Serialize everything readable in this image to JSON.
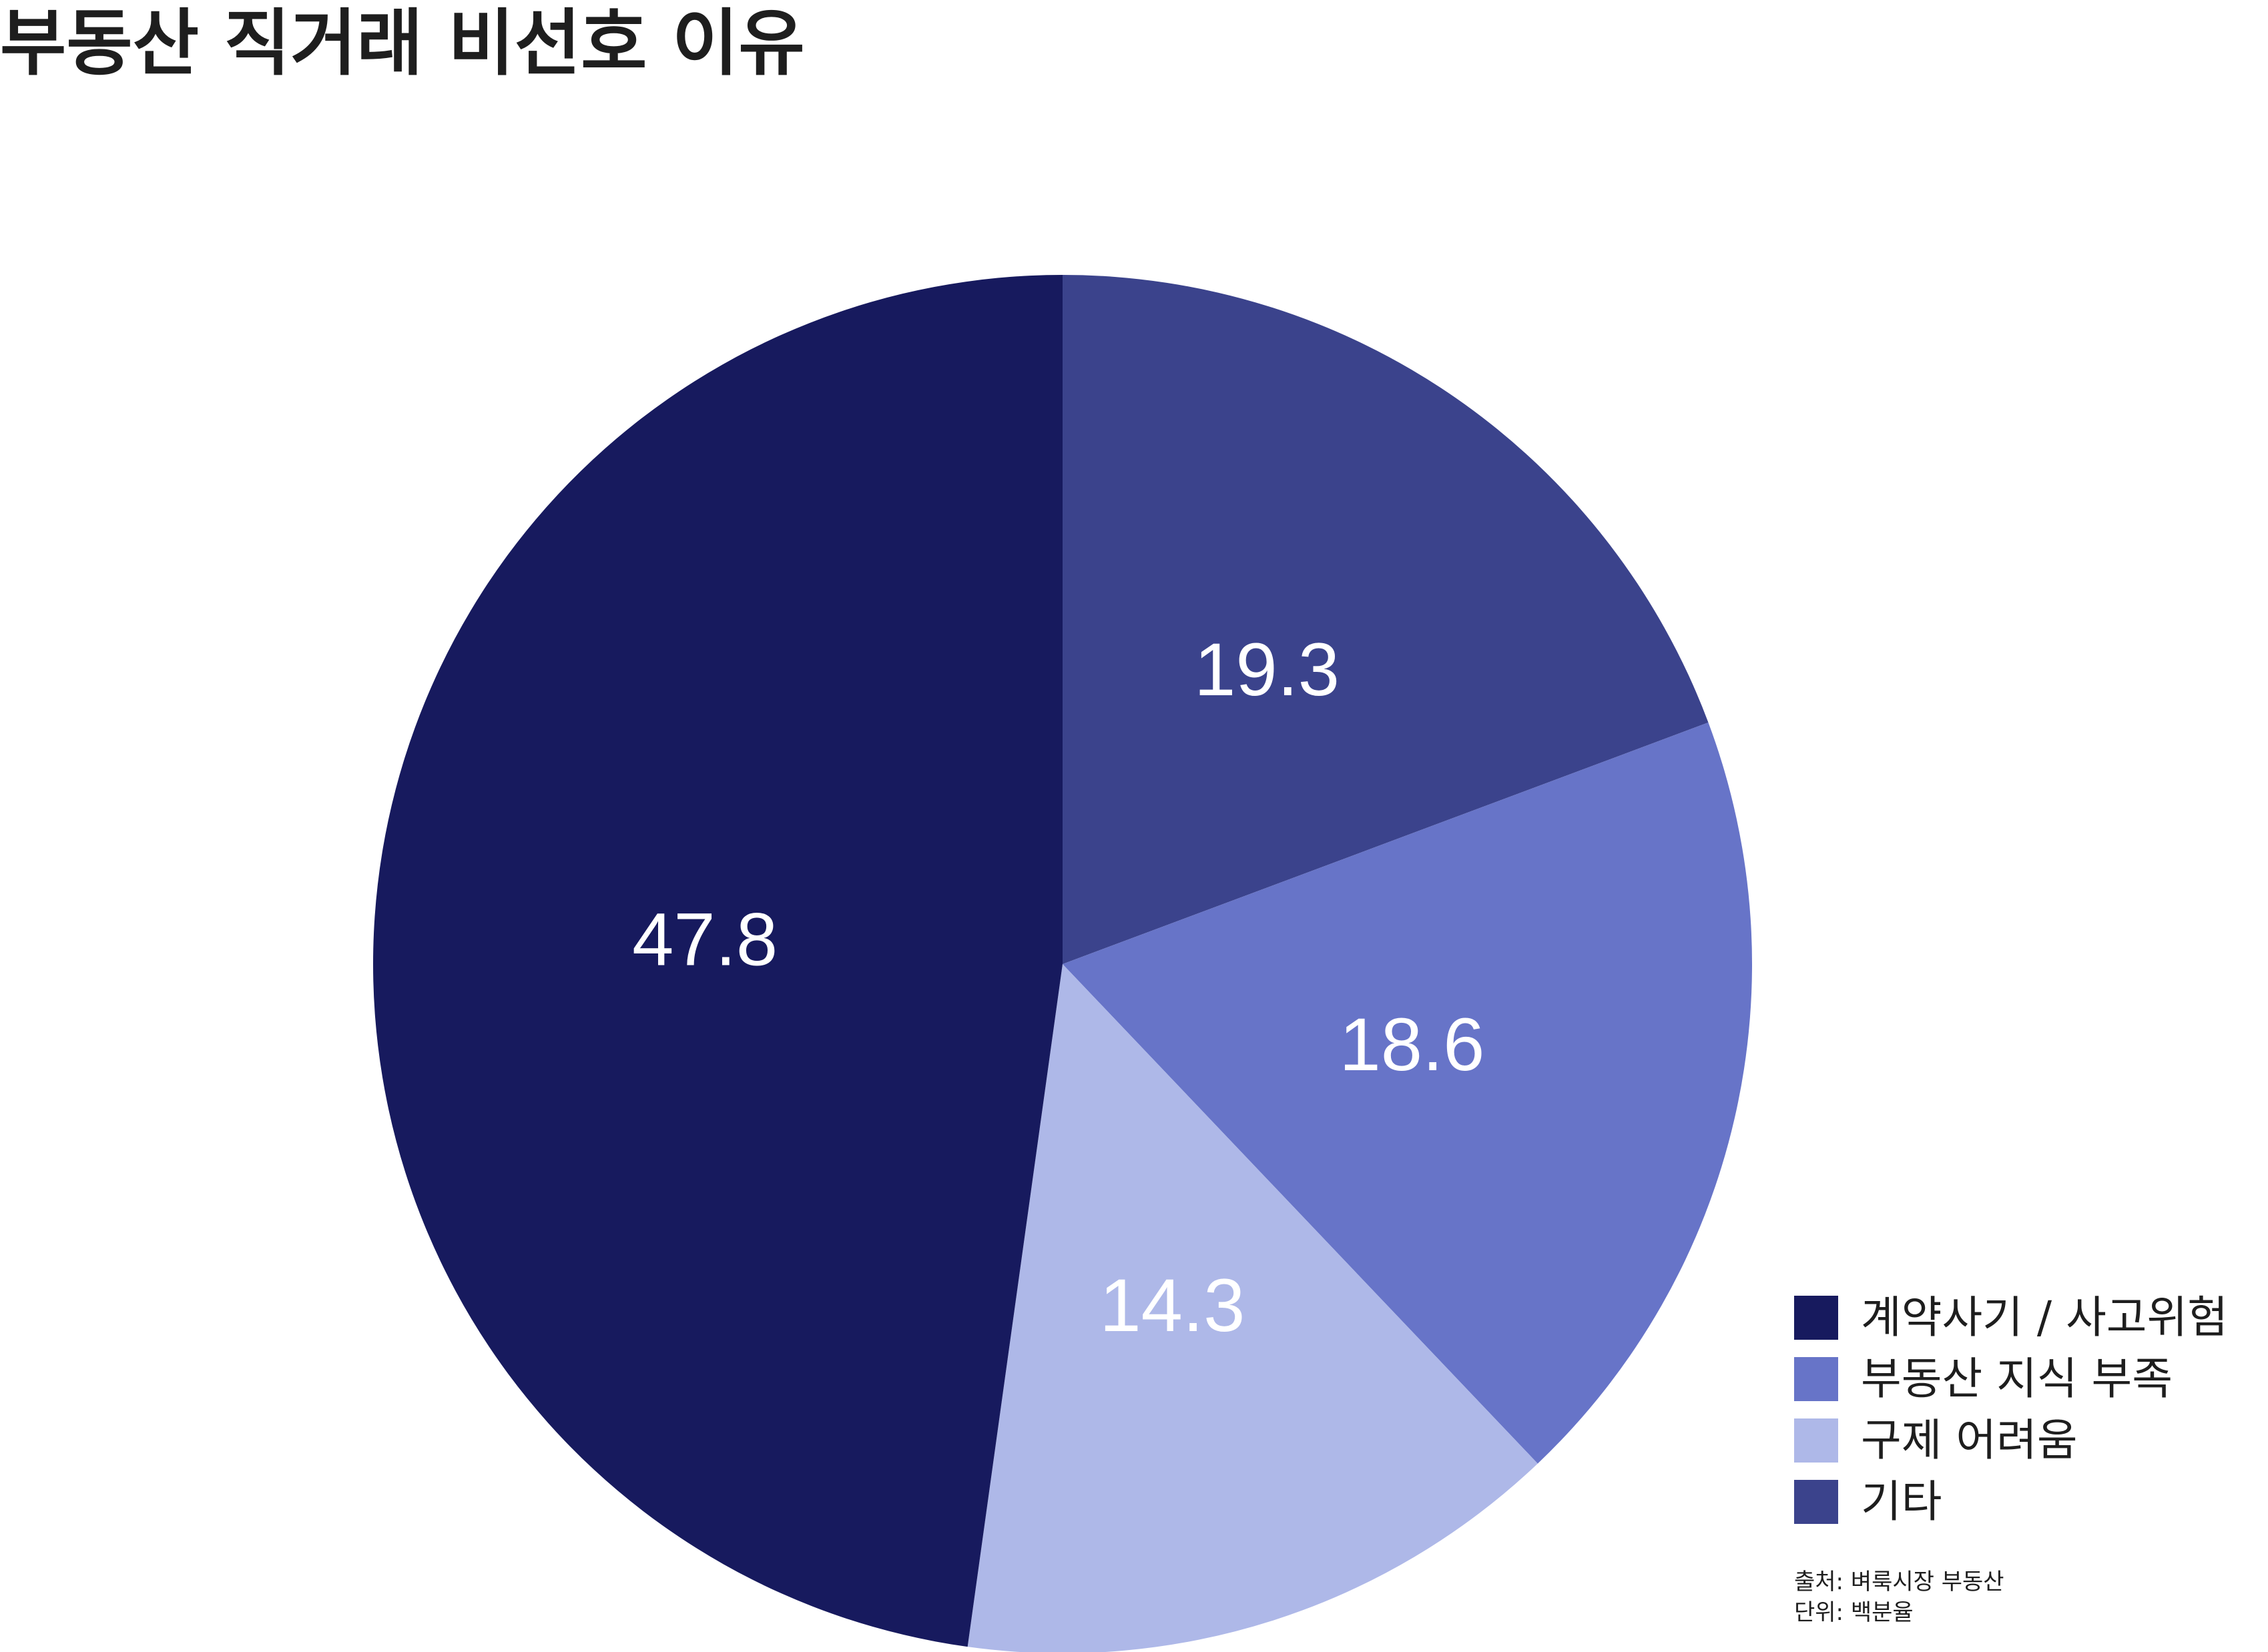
{
  "title": "부동산 직거래 비선호 이유",
  "chart_data": {
    "type": "pie",
    "title": "부동산 직거래 비선호 이유",
    "start": "12 o'clock, clockwise",
    "slices": [
      {
        "name": "기타",
        "value": 19.3,
        "color": "#3b438c"
      },
      {
        "name": "부동산 지식 부족",
        "value": 18.6,
        "color": "#6774c8"
      },
      {
        "name": "구제 어려움",
        "value": 14.3,
        "color": "#aeb8e8"
      },
      {
        "name": "계약사기 / 사고위험",
        "value": 47.8,
        "color": "#171a5e"
      }
    ],
    "legend_position": "bottom-right"
  },
  "legend": [
    {
      "label": "계약사기 / 사고위험",
      "color": "#171a5e"
    },
    {
      "label": "부동산 지식 부족",
      "color": "#6774c8"
    },
    {
      "label": "구제 어려움",
      "color": "#aeb8e8"
    },
    {
      "label": "기타",
      "color": "#3b438c"
    }
  ],
  "footnote": {
    "source": "출처: 벼룩시장 부동산",
    "unit": "단위: 백분율"
  }
}
